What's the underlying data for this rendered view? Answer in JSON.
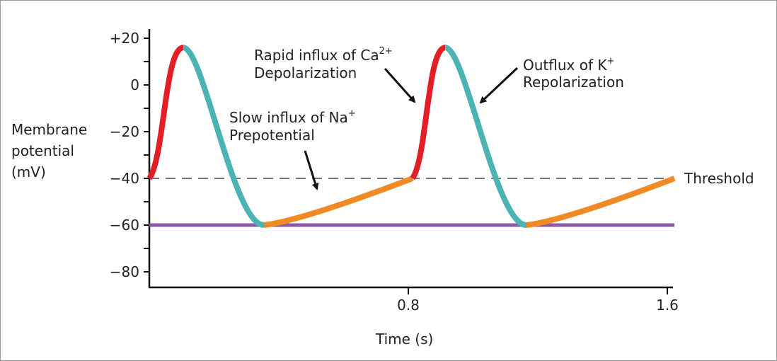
{
  "chart_data": {
    "type": "line",
    "xlabel": "Time (s)",
    "ylabel_lines": [
      "Membrane",
      "potential",
      "(mV)"
    ],
    "xlim": [
      0,
      1.6
    ],
    "ylim": [
      -90,
      30
    ],
    "xticks": [
      {
        "value": 0.8,
        "label": "0.8"
      },
      {
        "value": 1.6,
        "label": "1.6"
      }
    ],
    "yticks": [
      {
        "value": 20,
        "label": "+20"
      },
      {
        "value": 0,
        "label": "0"
      },
      {
        "value": -20,
        "label": "−20"
      },
      {
        "value": -40,
        "label": "−40"
      },
      {
        "value": -60,
        "label": "−60"
      },
      {
        "value": -80,
        "label": "−80"
      }
    ],
    "threshold": {
      "value": -40,
      "label": "Threshold",
      "style": "dashed"
    },
    "baseline": {
      "value": -60,
      "color": "#8e5aa8"
    },
    "segments": [
      {
        "phase": "depolarization",
        "color": "#e31e26",
        "from": [
          0,
          -40
        ],
        "to": [
          0.105,
          16
        ]
      },
      {
        "phase": "repolarization",
        "color": "#4cb3b3",
        "from": [
          0.105,
          16
        ],
        "to": [
          0.354,
          -60
        ]
      },
      {
        "phase": "prepotential",
        "color": "#f08a24",
        "from": [
          0.354,
          -60
        ],
        "to": [
          0.813,
          -40
        ]
      },
      {
        "phase": "depolarization",
        "color": "#e31e26",
        "from": [
          0.813,
          -40
        ],
        "to": [
          0.914,
          16
        ]
      },
      {
        "phase": "repolarization",
        "color": "#4cb3b3",
        "from": [
          0.914,
          16
        ],
        "to": [
          1.165,
          -60
        ]
      },
      {
        "phase": "prepotential",
        "color": "#f08a24",
        "from": [
          1.165,
          -60
        ],
        "to": [
          1.622,
          -40
        ]
      }
    ],
    "annotations": {
      "prepotential": {
        "line1": "Slow influx of Na",
        "sup1": "+",
        "line2": "Prepotential"
      },
      "depolarization": {
        "line1": "Rapid influx of Ca",
        "sup1": "2+",
        "line2": "Depolarization"
      },
      "repolarization": {
        "line1": "Outflux of K",
        "sup1": "+",
        "line2": "Repolarization"
      }
    }
  }
}
